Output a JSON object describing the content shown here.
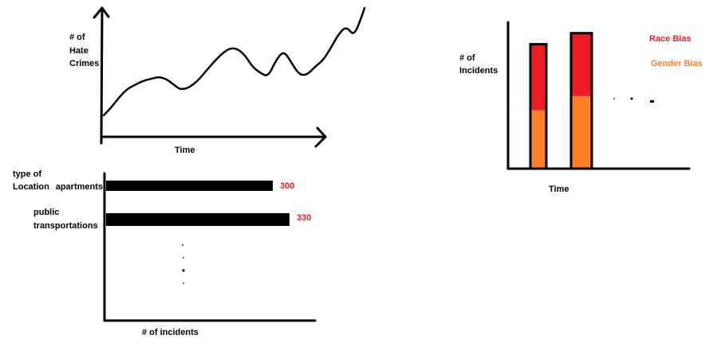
{
  "colors": {
    "ink": "#000000",
    "race": "#ec1c24",
    "gender": "#ff7f27",
    "value_label": "#ec1c24"
  },
  "chart_data": [
    {
      "type": "line",
      "title": "",
      "ylabel": "# of Hate Crimes",
      "ylabel_lines": [
        "# of",
        "Hate",
        "Crimes"
      ],
      "xlabel": "Time",
      "x": [
        0,
        3,
        6,
        9,
        12,
        15,
        18,
        21,
        24,
        27,
        29,
        31,
        33,
        36,
        38,
        40,
        42,
        45,
        48,
        51,
        54,
        57,
        60,
        63,
        66,
        69,
        72,
        75,
        78,
        81,
        84,
        87,
        90,
        93,
        96,
        99,
        100
      ],
      "y": [
        7,
        11,
        16,
        20,
        22,
        24,
        25,
        26,
        25,
        22,
        20,
        20,
        21,
        24,
        27,
        30,
        33,
        37,
        40,
        40,
        37,
        31,
        28,
        26,
        34,
        39,
        33,
        27,
        27,
        31,
        34,
        40,
        47,
        51,
        46,
        56,
        60
      ],
      "xlim": [
        0,
        100
      ],
      "ylim": [
        0,
        62
      ],
      "grid": false,
      "legend": "none",
      "axis_arrows": true
    },
    {
      "type": "bar",
      "orientation": "horizontal",
      "title": "",
      "ylabel": "type of Location",
      "ylabel_lines": [
        "type of",
        "Location"
      ],
      "xlabel": "# of incidents",
      "categories": [
        "apartments",
        "public transportations"
      ],
      "category_lines": [
        [
          "apartments"
        ],
        [
          "public",
          "transportations"
        ]
      ],
      "values": [
        300,
        330
      ],
      "value_labels": [
        "300",
        "330"
      ],
      "xlim": [
        0,
        460
      ],
      "grid": false,
      "continuation": "dotted"
    },
    {
      "type": "bar",
      "stacked": true,
      "title": "",
      "ylabel": "# of Incidents",
      "ylabel_lines": [
        "# of",
        "Incidents"
      ],
      "xlabel": "Time",
      "categories": [
        "",
        ""
      ],
      "series": [
        {
          "name": "Gender Bias",
          "values": [
            37,
            46
          ]
        },
        {
          "name": "Race Bias",
          "values": [
            42,
            40
          ]
        }
      ],
      "ylim": [
        0,
        90
      ],
      "grid": false,
      "legend": "right",
      "continuation": "dotted"
    }
  ]
}
